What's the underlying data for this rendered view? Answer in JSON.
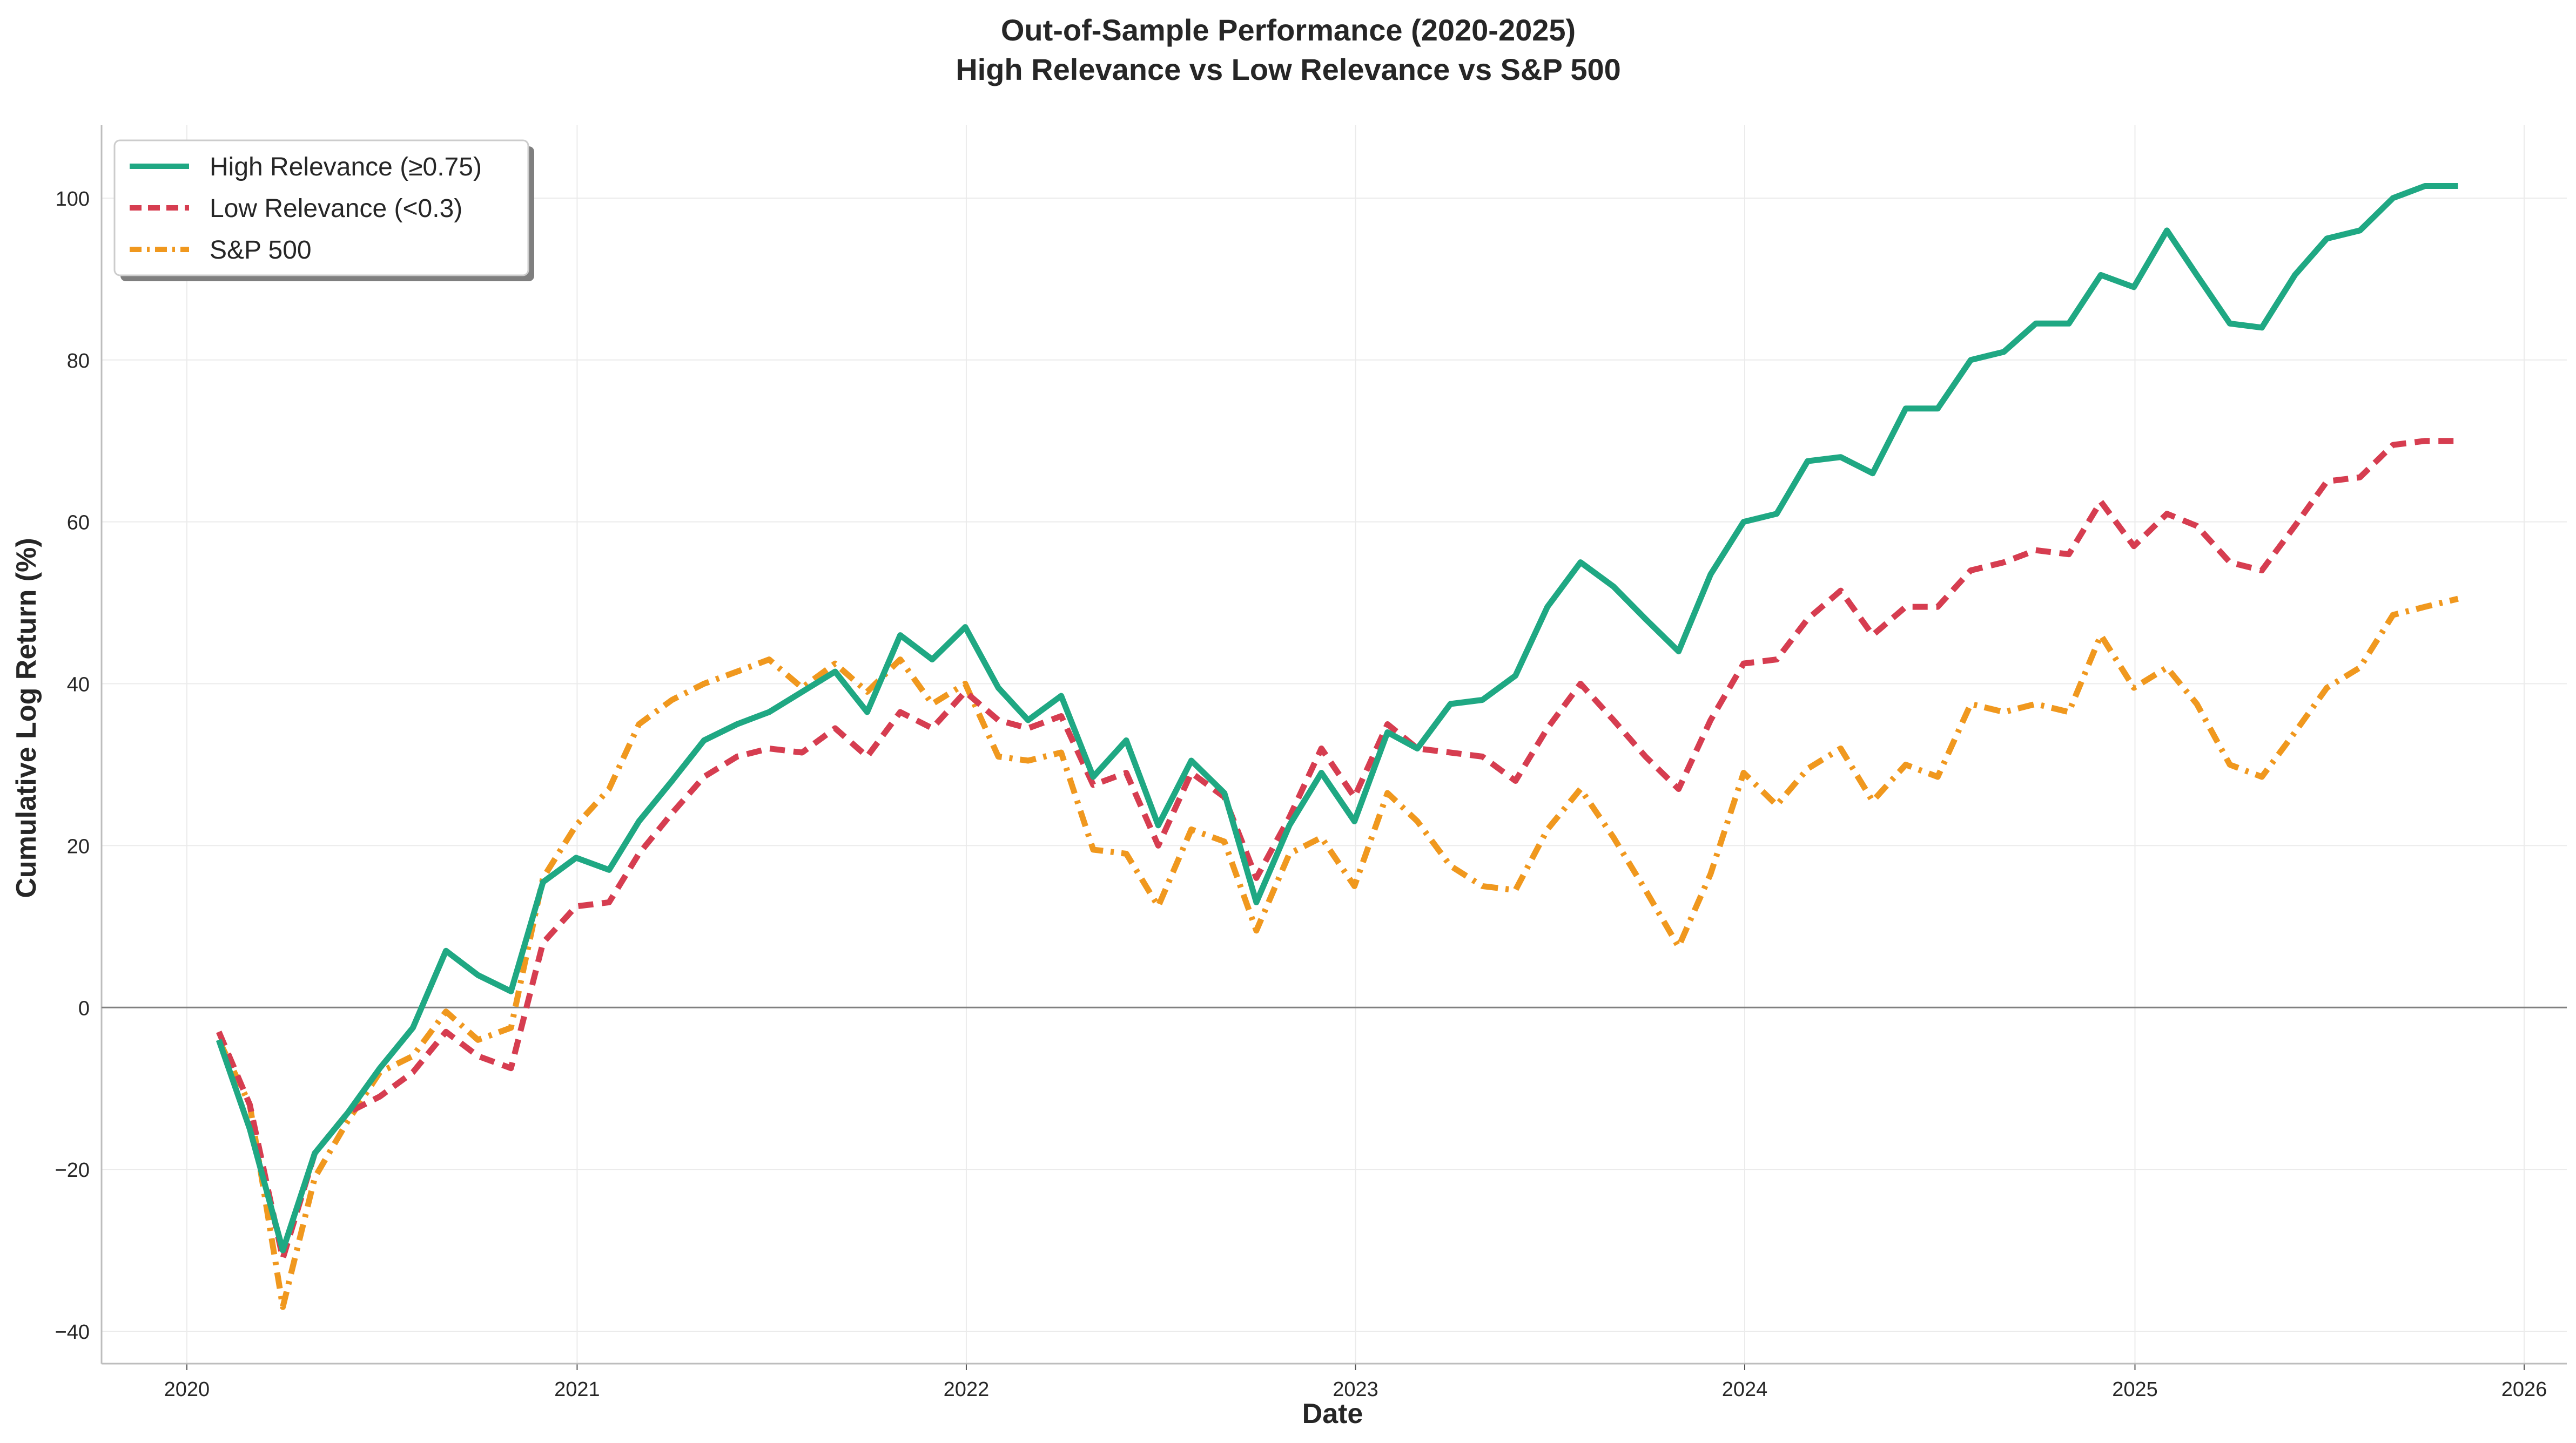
{
  "chart_data": {
    "type": "line",
    "title_line1": "Out-of-Sample Performance (2020-2025)",
    "title_line2": "High Relevance vs Low Relevance vs S&P 500",
    "xlabel": "Date",
    "ylabel": "Cumulative Log Return (%)",
    "xlim": [
      "2019-10-13",
      "2026-02-10"
    ],
    "ylim": [
      -44,
      109
    ],
    "x_ticks": [
      "2020",
      "2021",
      "2022",
      "2023",
      "2024",
      "2025",
      "2026"
    ],
    "y_ticks": [
      -40,
      -20,
      0,
      20,
      40,
      60,
      80,
      100
    ],
    "grid": true,
    "zero_line": true,
    "legend_position": "top-left",
    "x": [
      "2020-01-31",
      "2020-02-29",
      "2020-03-31",
      "2020-04-30",
      "2020-05-31",
      "2020-06-30",
      "2020-07-31",
      "2020-08-31",
      "2020-09-30",
      "2020-10-31",
      "2020-11-30",
      "2020-12-31",
      "2021-01-31",
      "2021-02-28",
      "2021-03-31",
      "2021-04-30",
      "2021-05-31",
      "2021-06-30",
      "2021-07-31",
      "2021-08-31",
      "2021-09-30",
      "2021-10-31",
      "2021-11-30",
      "2021-12-31",
      "2022-01-31",
      "2022-02-28",
      "2022-03-31",
      "2022-04-30",
      "2022-05-31",
      "2022-06-30",
      "2022-07-31",
      "2022-08-31",
      "2022-09-30",
      "2022-10-31",
      "2022-11-30",
      "2022-12-31",
      "2023-01-31",
      "2023-02-28",
      "2023-03-31",
      "2023-04-30",
      "2023-05-31",
      "2023-06-30",
      "2023-07-31",
      "2023-08-31",
      "2023-09-30",
      "2023-10-31",
      "2023-11-30",
      "2023-12-31",
      "2024-01-31",
      "2024-02-29",
      "2024-03-31",
      "2024-04-30",
      "2024-05-31",
      "2024-06-30",
      "2024-07-31",
      "2024-08-31",
      "2024-09-30",
      "2024-10-31",
      "2024-11-30",
      "2024-12-31",
      "2025-01-31",
      "2025-02-28",
      "2025-03-31",
      "2025-04-30",
      "2025-05-31",
      "2025-06-30",
      "2025-07-31",
      "2025-08-31",
      "2025-09-30",
      "2025-10-31"
    ],
    "series": [
      {
        "name": "High Relevance (≥0.75)",
        "color": "#1fa883",
        "style": "solid",
        "values": [
          -4,
          -15,
          -30,
          -18,
          -13,
          -7.5,
          -2.5,
          7,
          4,
          2,
          15.5,
          18.5,
          17,
          23,
          28,
          33,
          35,
          36.5,
          39,
          41.5,
          36.5,
          46,
          43,
          47,
          39.5,
          35.5,
          38.5,
          28.5,
          33,
          22.5,
          30.5,
          26.5,
          13,
          22.5,
          29,
          23,
          34,
          32,
          37.5,
          38,
          41,
          49.5,
          55,
          52,
          48,
          44,
          53.5,
          60,
          61,
          67.5,
          68,
          66,
          74,
          74,
          80,
          81,
          84.5,
          84.5,
          90.5,
          89,
          96,
          90.5,
          84.5,
          84,
          90.5,
          95,
          96,
          100,
          101.5,
          101.5
        ]
      },
      {
        "name": "Low Relevance (<0.3)",
        "color": "#d63d50",
        "style": "dashed",
        "values": [
          -3,
          -12,
          -31,
          -18,
          -13,
          -11,
          -8,
          -3,
          -6,
          -7.5,
          8,
          12.5,
          13,
          19,
          24,
          28.5,
          31,
          32,
          31.5,
          34.5,
          31,
          36.5,
          34.5,
          39,
          35.5,
          34.5,
          36,
          27.5,
          29,
          20,
          29,
          26,
          16,
          23.5,
          32,
          26,
          35,
          32,
          31.5,
          31,
          28,
          34.5,
          40,
          35.5,
          31,
          27,
          35.5,
          42.5,
          43,
          48,
          51.5,
          46,
          49.5,
          49.5,
          54,
          55,
          56.5,
          56,
          62.5,
          57,
          61,
          59.5,
          55,
          54,
          59.5,
          65,
          65.5,
          69.5,
          70,
          70
        ]
      },
      {
        "name": "S&P 500",
        "color": "#f0981e",
        "style": "dashdot",
        "values": [
          -4,
          -12,
          -37,
          -21,
          -14,
          -8,
          -6,
          -0.5,
          -4,
          -2.5,
          16,
          22.5,
          27,
          35,
          38,
          40,
          41.5,
          43,
          39.5,
          42.5,
          39,
          43,
          37.5,
          40,
          31,
          30.5,
          31.5,
          19.5,
          19,
          12.5,
          22,
          20.5,
          9.5,
          19,
          21,
          15,
          26.5,
          23,
          17.5,
          15,
          14.5,
          22,
          27,
          21,
          14.5,
          7.5,
          16.5,
          29,
          25,
          29.5,
          32,
          25.5,
          30,
          28.5,
          37.5,
          36.5,
          37.5,
          36.5,
          46,
          39.5,
          42,
          37.5,
          30,
          28.5,
          34,
          39.5,
          42,
          48.5,
          49.5,
          50.5
        ]
      }
    ]
  }
}
